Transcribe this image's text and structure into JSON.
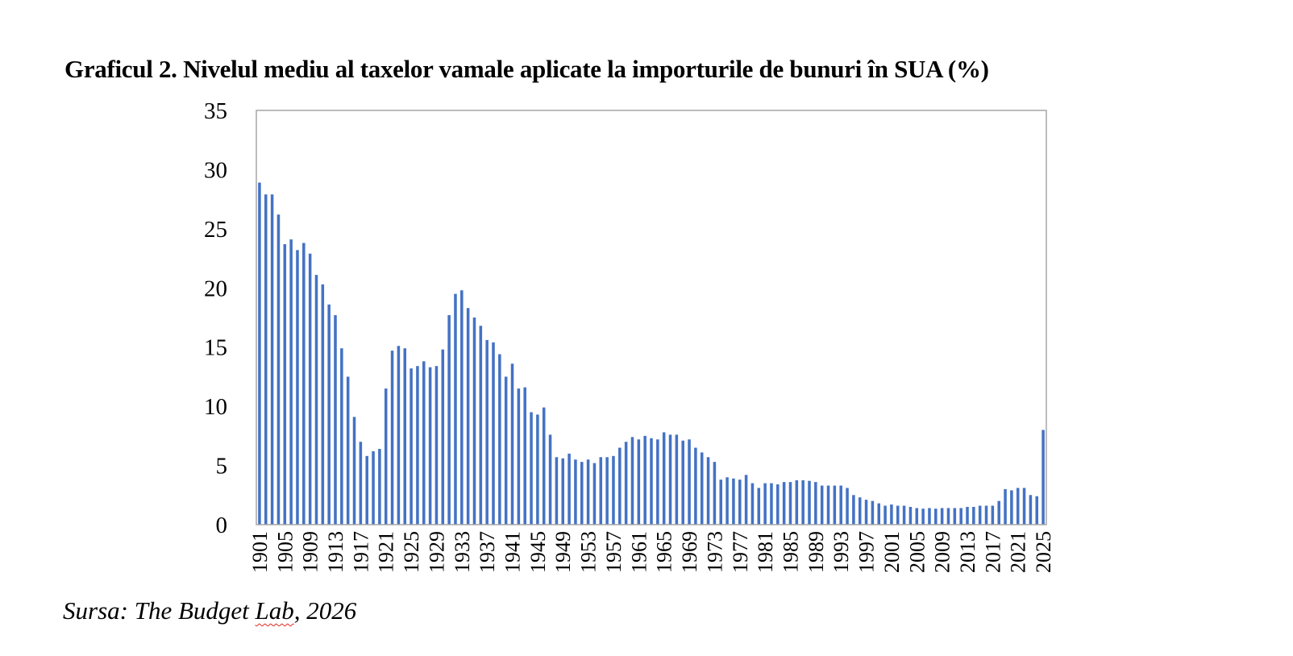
{
  "title": "Graficul 2. Nivelul mediu al taxelor vamale aplicate la importurile de bunuri în SUA (%)",
  "source": {
    "prefix": "Sursa: The Budget ",
    "underlined": "Lab",
    "suffix": ", 2026"
  },
  "chart_data": {
    "type": "bar",
    "title": "Graficul 2. Nivelul mediu al taxelor vamale aplicate la importurile de bunuri în SUA (%)",
    "xlabel": "",
    "ylabel": "",
    "ylim": [
      0,
      35
    ],
    "yticks": [
      0,
      5,
      10,
      15,
      20,
      25,
      30,
      35
    ],
    "x_start": 1901,
    "x_end": 2025,
    "xtick_every": 4,
    "grid": false,
    "legend": "none",
    "bar_color": "#4472C4",
    "frame_color": "#A6A6A6",
    "categories": [
      1901,
      1902,
      1903,
      1904,
      1905,
      1906,
      1907,
      1908,
      1909,
      1910,
      1911,
      1912,
      1913,
      1914,
      1915,
      1916,
      1917,
      1918,
      1919,
      1920,
      1921,
      1922,
      1923,
      1924,
      1925,
      1926,
      1927,
      1928,
      1929,
      1930,
      1931,
      1932,
      1933,
      1934,
      1935,
      1936,
      1937,
      1938,
      1939,
      1940,
      1941,
      1942,
      1943,
      1944,
      1945,
      1946,
      1947,
      1948,
      1949,
      1950,
      1951,
      1952,
      1953,
      1954,
      1955,
      1956,
      1957,
      1958,
      1959,
      1960,
      1961,
      1962,
      1963,
      1964,
      1965,
      1966,
      1967,
      1968,
      1969,
      1970,
      1971,
      1972,
      1973,
      1974,
      1975,
      1976,
      1977,
      1978,
      1979,
      1980,
      1981,
      1982,
      1983,
      1984,
      1985,
      1986,
      1987,
      1988,
      1989,
      1990,
      1991,
      1992,
      1993,
      1994,
      1995,
      1996,
      1997,
      1998,
      1999,
      2000,
      2001,
      2002,
      2003,
      2004,
      2005,
      2006,
      2007,
      2008,
      2009,
      2010,
      2011,
      2012,
      2013,
      2014,
      2015,
      2016,
      2017,
      2018,
      2019,
      2020,
      2021,
      2022,
      2023,
      2024,
      2025
    ],
    "values": [
      28.9,
      27.9,
      27.9,
      26.2,
      23.7,
      24.1,
      23.2,
      23.8,
      22.9,
      21.1,
      20.3,
      18.6,
      17.7,
      14.9,
      12.5,
      9.1,
      7.0,
      5.8,
      6.2,
      6.4,
      11.5,
      14.7,
      15.1,
      14.9,
      13.2,
      13.4,
      13.8,
      13.3,
      13.4,
      14.8,
      17.7,
      19.5,
      19.8,
      18.3,
      17.5,
      16.8,
      15.6,
      15.4,
      14.4,
      12.5,
      13.6,
      11.5,
      11.6,
      9.5,
      9.3,
      9.9,
      7.6,
      5.7,
      5.6,
      6.0,
      5.5,
      5.3,
      5.5,
      5.2,
      5.7,
      5.7,
      5.8,
      6.5,
      7.0,
      7.4,
      7.2,
      7.5,
      7.3,
      7.2,
      7.8,
      7.6,
      7.6,
      7.1,
      7.2,
      6.5,
      6.1,
      5.7,
      5.3,
      3.8,
      4.0,
      3.9,
      3.8,
      4.2,
      3.5,
      3.1,
      3.5,
      3.5,
      3.4,
      3.6,
      3.6,
      3.75,
      3.75,
      3.7,
      3.6,
      3.3,
      3.3,
      3.3,
      3.3,
      3.1,
      2.5,
      2.3,
      2.1,
      2.0,
      1.8,
      1.6,
      1.7,
      1.6,
      1.6,
      1.5,
      1.4,
      1.35,
      1.4,
      1.35,
      1.4,
      1.4,
      1.4,
      1.4,
      1.5,
      1.5,
      1.6,
      1.6,
      1.6,
      2.0,
      3.0,
      2.9,
      3.1,
      3.1,
      2.5,
      2.4,
      8.0
    ]
  }
}
